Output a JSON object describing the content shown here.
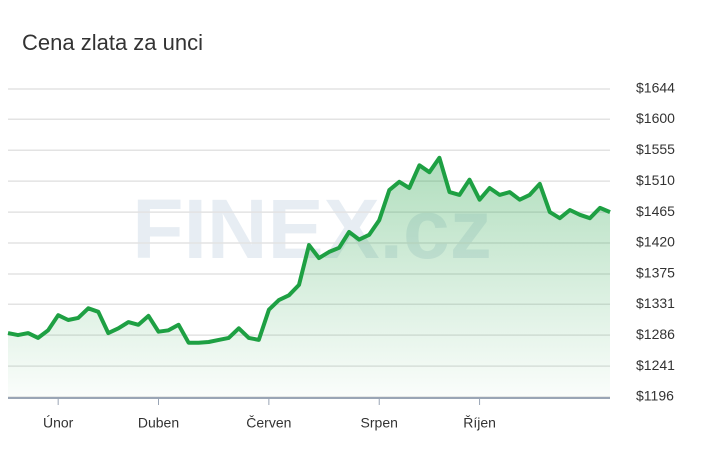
{
  "chart_data": {
    "type": "area",
    "title": "Cena zlata za unci",
    "watermark": "FINEX.cz",
    "categories": [
      null,
      null,
      null,
      null,
      null,
      "Únor",
      null,
      null,
      null,
      null,
      null,
      null,
      null,
      null,
      null,
      "Duben",
      null,
      null,
      null,
      null,
      null,
      null,
      null,
      null,
      null,
      null,
      "Červen",
      null,
      null,
      null,
      null,
      null,
      null,
      null,
      null,
      null,
      null,
      "Srpen",
      null,
      null,
      null,
      null,
      null,
      null,
      null,
      null,
      null,
      "Říjen",
      null,
      null,
      null,
      null,
      null,
      null,
      null,
      null,
      null,
      null,
      null,
      null,
      null
    ],
    "series": [
      {
        "color": "#1ea043",
        "values": [
          1289,
          1286,
          1289,
          1282,
          1293,
          1315,
          1308,
          1311,
          1325,
          1320,
          1289,
          1296,
          1305,
          1301,
          1314,
          1291,
          1293,
          1301,
          1275,
          1275,
          1276,
          1279,
          1282,
          1296,
          1282,
          1279,
          1323,
          1337,
          1344,
          1359,
          1417,
          1398,
          1407,
          1413,
          1436,
          1425,
          1432,
          1453,
          1497,
          1509,
          1500,
          1533,
          1523,
          1544,
          1494,
          1490,
          1512,
          1483,
          1500,
          1490,
          1494,
          1483,
          1490,
          1506,
          1465,
          1456,
          1468,
          1461,
          1456,
          1471,
          1465
        ]
      }
    ],
    "ylim": [
      1196,
      1644
    ],
    "yticks": [
      {
        "value": 1196,
        "label": "$1196"
      },
      {
        "value": 1241,
        "label": "$1241"
      },
      {
        "value": 1286,
        "label": "$1286"
      },
      {
        "value": 1331,
        "label": "$1331"
      },
      {
        "value": 1375,
        "label": "$1375"
      },
      {
        "value": 1420,
        "label": "$1420"
      },
      {
        "value": 1465,
        "label": "$1465"
      },
      {
        "value": 1510,
        "label": "$1510"
      },
      {
        "value": 1555,
        "label": "$1555"
      },
      {
        "value": 1600,
        "label": "$1600"
      },
      {
        "value": 1644,
        "label": "$1644"
      }
    ],
    "grid": true
  }
}
